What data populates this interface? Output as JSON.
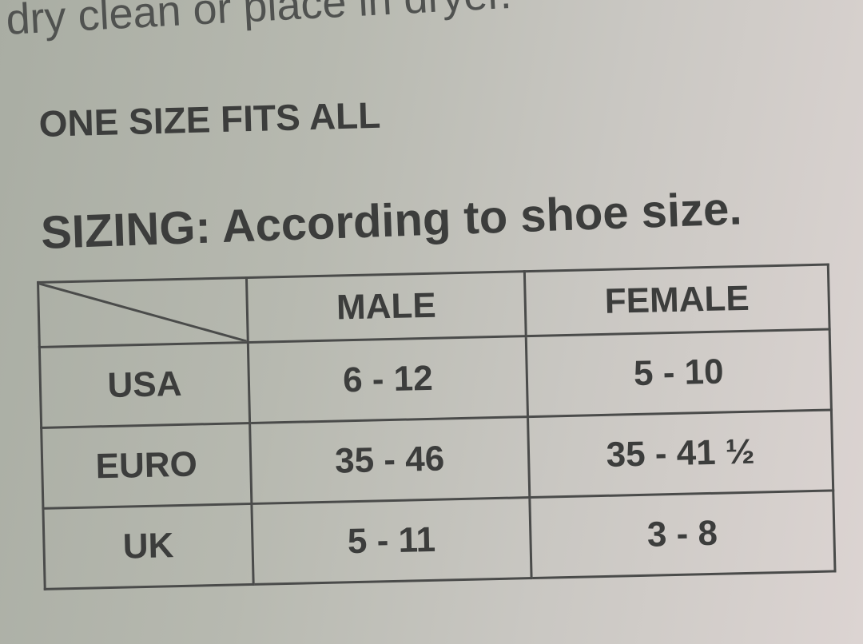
{
  "care_text": "dry clean or place in dryer.",
  "size_note": "ONE SIZE FITS ALL",
  "sizing_heading": "SIZING: According to shoe size.",
  "table": {
    "headers": [
      "",
      "MALE",
      "FEMALE"
    ],
    "rows": [
      {
        "region": "USA",
        "male": "6 - 12",
        "female": "5 - 10"
      },
      {
        "region": "EURO",
        "male": "35 - 46",
        "female": "35 - 41 ½"
      },
      {
        "region": "UK",
        "male": "5 - 11",
        "female": "3 - 8"
      }
    ]
  }
}
